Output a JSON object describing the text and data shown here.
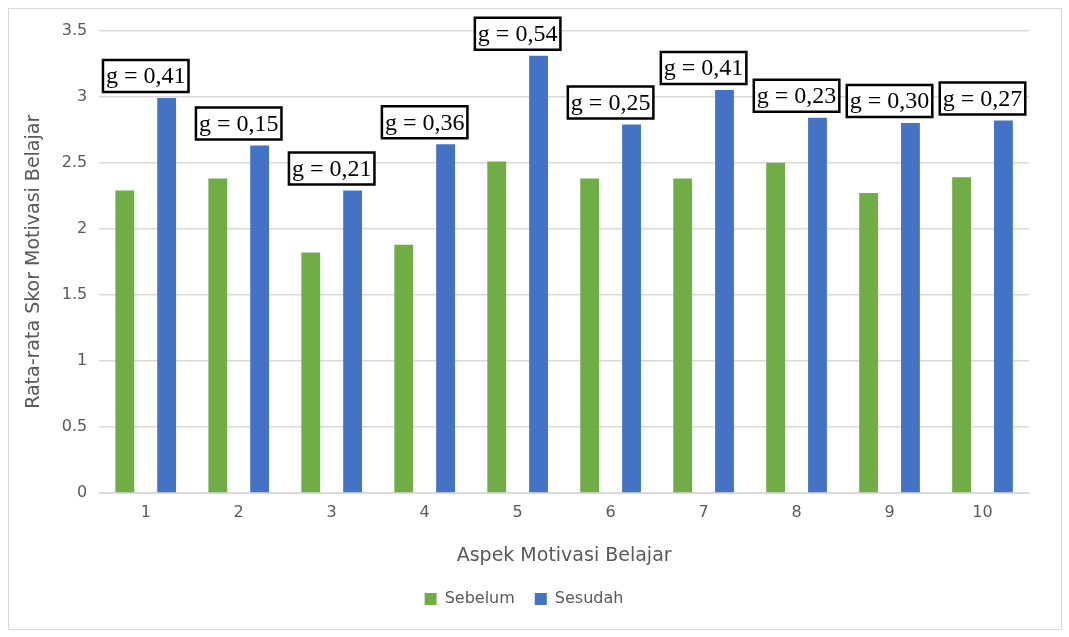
{
  "chart_data": {
    "type": "bar",
    "xlabel": "Aspek Motivasi Belajar",
    "ylabel": "Rata-rata Skor Motivasi Belajar",
    "categories": [
      "1",
      "2",
      "3",
      "4",
      "5",
      "6",
      "7",
      "8",
      "9",
      "10"
    ],
    "series": [
      {
        "name": "Sebelum",
        "color": "#70ad47",
        "values": [
          2.29,
          2.38,
          1.82,
          1.88,
          2.51,
          2.38,
          2.38,
          2.5,
          2.27,
          2.39
        ]
      },
      {
        "name": "Sesudah",
        "color": "#4472c4",
        "values": [
          2.99,
          2.63,
          2.29,
          2.64,
          3.31,
          2.79,
          3.05,
          2.84,
          2.8,
          2.82
        ]
      }
    ],
    "ylim": [
      0,
      3.5
    ],
    "yticks": [
      0,
      0.5,
      1,
      1.5,
      2,
      2.5,
      3,
      3.5
    ],
    "grid": "y",
    "legend": "bottom",
    "annotations": [
      "g = 0,41",
      "g = 0,15",
      "g = 0,21",
      "g = 0,36",
      "g = 0,54",
      "g = 0,25",
      "g = 0,41",
      "g = 0,23",
      "g = 0,30",
      "g = 0,27"
    ]
  }
}
